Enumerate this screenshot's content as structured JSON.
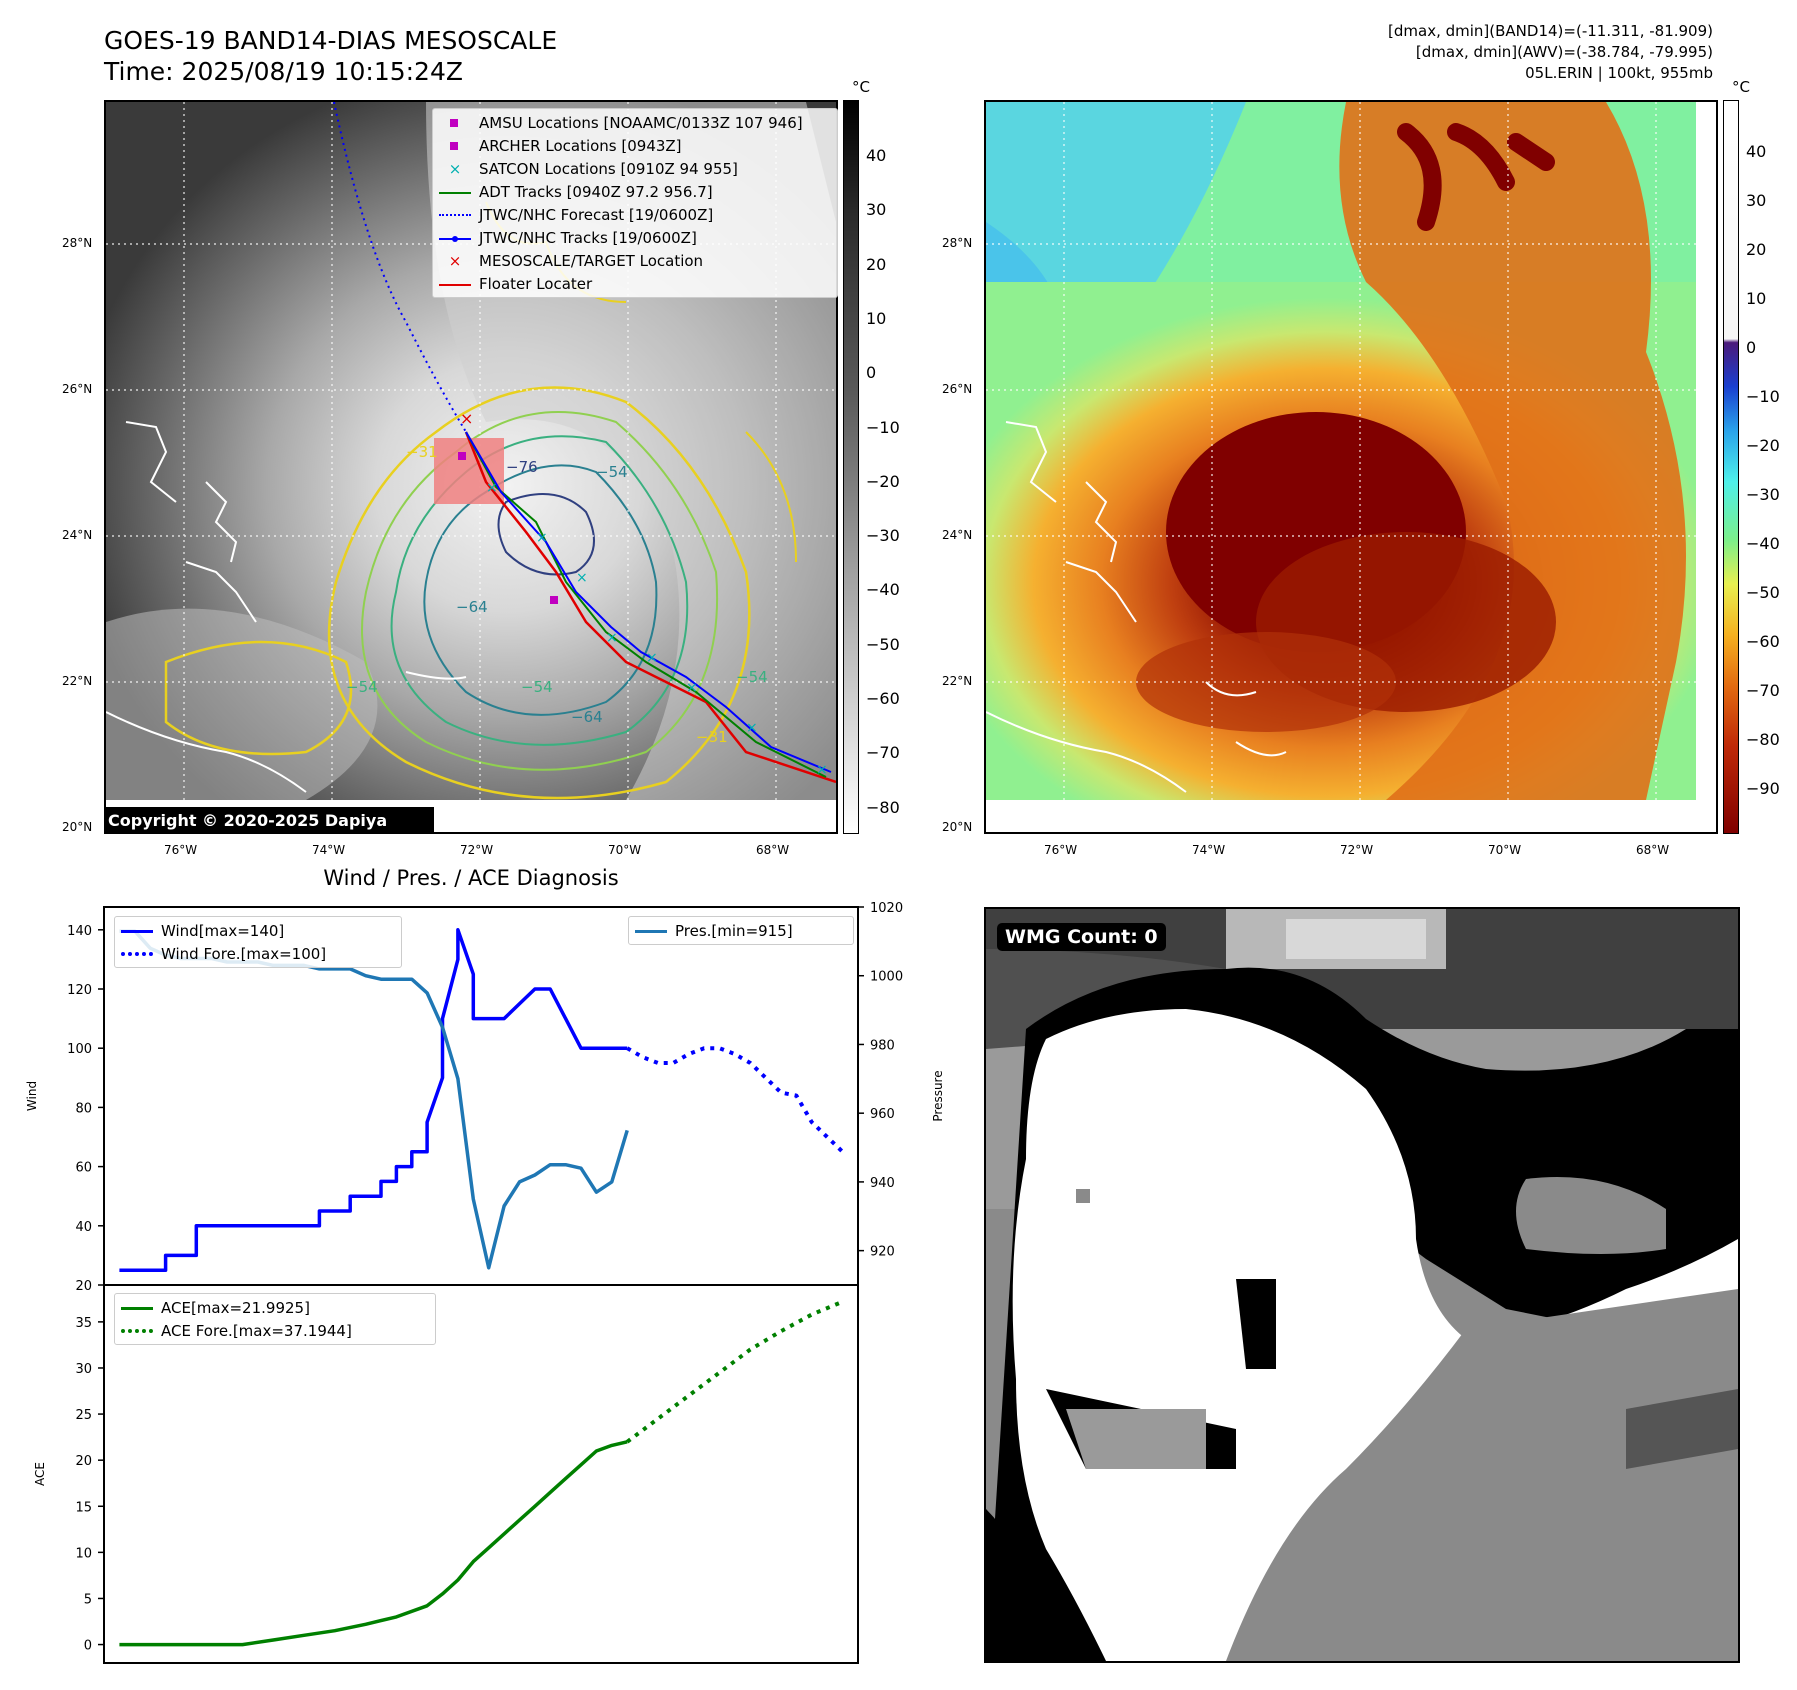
{
  "header": {
    "title_line1": "GOES-19 BAND14-DIAS MESOSCALE",
    "title_line2": "Time: 2025/08/19 10:15:24Z",
    "stat_line1": "[dmax, dmin](BAND14)=(-11.311, -81.909)",
    "stat_line2": "[dmax, dmin](AWV)=(-38.784, -79.995)",
    "stat_line3": "05L.ERIN | 100kt, 955mb"
  },
  "map": {
    "lat_labels": [
      "28°N",
      "26°N",
      "24°N",
      "22°N",
      "20°N"
    ],
    "lon_labels": [
      "76°W",
      "74°W",
      "72°W",
      "70°W",
      "68°W"
    ],
    "unit": "°C",
    "copyright": "Copyright © 2020-2025 Dapiya",
    "colorbar1_ticks": [
      "40",
      "30",
      "20",
      "10",
      "0",
      "−10",
      "−20",
      "−30",
      "−40",
      "−50",
      "−60",
      "−70",
      "−80"
    ],
    "colorbar2_ticks": [
      "40",
      "30",
      "20",
      "10",
      "0",
      "−10",
      "−20",
      "−30",
      "−40",
      "−50",
      "−60",
      "−70",
      "−80",
      "−90"
    ],
    "contour_labels": [
      "−76",
      "−54",
      "−64",
      "−54",
      "−64",
      "−54",
      "−54",
      "−31",
      "−31"
    ],
    "legend": [
      {
        "label": "AMSU Locations [NOAAMC/0133Z 107 946]",
        "color": "#c000c0",
        "marker": "square"
      },
      {
        "label": "ARCHER Locations [0943Z]",
        "color": "#c000c0",
        "marker": "square"
      },
      {
        "label": "SATCON Locations [0910Z 94 955]",
        "color": "#00b0b0",
        "marker": "x"
      },
      {
        "label": "ADT Tracks [0940Z 97.2 956.7]",
        "color": "#008000",
        "marker": "line"
      },
      {
        "label": "JTWC/NHC Forecast [19/0600Z]",
        "color": "#0000ff",
        "marker": "dotted"
      },
      {
        "label": "JTWC/NHC Tracks [19/0600Z]",
        "color": "#0000ff",
        "marker": "line-dot"
      },
      {
        "label": "MESOSCALE/TARGET Location",
        "color": "#e00000",
        "marker": "x"
      },
      {
        "label": "Floater Locater",
        "color": "#e00000",
        "marker": "line"
      }
    ]
  },
  "diagnosis": {
    "title": "Wind / Pres. / ACE Diagnosis",
    "wind_ylabel": "Wind",
    "pres_ylabel": "Pressure",
    "ace_ylabel": "ACE",
    "wind_ticks": [
      "140",
      "120",
      "100",
      "80",
      "60",
      "40",
      "20"
    ],
    "pres_ticks": [
      "1020",
      "1000",
      "980",
      "960",
      "940",
      "920"
    ],
    "ace_ticks": [
      "35",
      "30",
      "25",
      "20",
      "15",
      "10",
      "5",
      "0"
    ],
    "legend_wind": "Wind[max=140]",
    "legend_wind_fore": "Wind Fore.[max=100]",
    "legend_pres": "Pres.[min=915]",
    "legend_ace": "ACE[max=21.9925]",
    "legend_ace_fore": "ACE Fore.[max=37.1944]"
  },
  "chart_data": [
    {
      "type": "line",
      "title": "Wind / Pres. / ACE Diagnosis",
      "ylabel": "Wind",
      "ylim": [
        20,
        145
      ],
      "y2label": "Pressure",
      "y2lim": [
        910,
        1020
      ],
      "series": [
        {
          "name": "Wind[max=140]",
          "axis": "left",
          "style": "solid",
          "color": "#0000ff",
          "x": [
            0,
            3,
            3,
            5,
            5,
            8,
            8,
            13,
            13,
            15,
            15,
            17,
            17,
            18,
            18,
            19,
            19,
            20,
            20,
            21,
            21,
            22,
            22,
            23,
            23,
            24,
            24,
            25,
            26,
            27,
            28,
            29,
            30,
            31,
            32,
            33
          ],
          "y": [
            25,
            25,
            30,
            30,
            40,
            40,
            40,
            40,
            45,
            45,
            50,
            50,
            55,
            55,
            60,
            60,
            65,
            65,
            75,
            90,
            110,
            130,
            140,
            125,
            110,
            110,
            110,
            110,
            115,
            120,
            120,
            110,
            100,
            100,
            100,
            100
          ]
        },
        {
          "name": "Wind Fore.[max=100]",
          "axis": "left",
          "style": "dotted",
          "color": "#0000ff",
          "x": [
            33,
            34,
            35,
            36,
            37,
            38,
            39,
            40,
            41,
            42,
            43,
            44,
            45,
            46,
            47
          ],
          "y": [
            100,
            97,
            95,
            95,
            98,
            100,
            100,
            98,
            95,
            90,
            85,
            84,
            75,
            70,
            65
          ]
        },
        {
          "name": "Pres.[min=915]",
          "axis": "right",
          "style": "solid",
          "color": "#1f77b4",
          "x": [
            0,
            1,
            2,
            3,
            4,
            5,
            6,
            7,
            8,
            9,
            10,
            11,
            12,
            13,
            14,
            15,
            16,
            17,
            18,
            19,
            20,
            21,
            22,
            23,
            24,
            25,
            26,
            27,
            28,
            29,
            30,
            31,
            32,
            33
          ],
          "y": [
            1013,
            1013,
            1008,
            1006,
            1005,
            1005,
            1005,
            1004,
            1004,
            1004,
            1003,
            1003,
            1003,
            1002,
            1002,
            1002,
            1000,
            999,
            999,
            999,
            995,
            985,
            970,
            935,
            915,
            933,
            940,
            942,
            945,
            945,
            944,
            937,
            940,
            955
          ]
        },
        {
          "name": "ACE[max=21.9925]",
          "axis": "ace",
          "style": "solid",
          "color": "#008000",
          "x": [
            0,
            2,
            4,
            6,
            8,
            10,
            12,
            14,
            16,
            18,
            20,
            21,
            22,
            23,
            24,
            25,
            26,
            27,
            28,
            29,
            30,
            31,
            32,
            33
          ],
          "y": [
            0,
            0,
            0,
            0,
            0,
            0.5,
            1.0,
            1.5,
            2.2,
            3.0,
            4.2,
            5.5,
            7.0,
            9.0,
            10.5,
            12.0,
            13.5,
            15.0,
            16.5,
            18.0,
            19.5,
            21.0,
            21.6,
            21.99
          ]
        },
        {
          "name": "ACE Fore.[max=37.1944]",
          "axis": "ace",
          "style": "dotted",
          "color": "#008000",
          "x": [
            33,
            35,
            37,
            39,
            41,
            43,
            45,
            47
          ],
          "y": [
            21.99,
            24.5,
            27.0,
            29.5,
            32.0,
            34.0,
            35.8,
            37.19
          ]
        }
      ],
      "ace_ylim": [
        -2,
        39
      ]
    }
  ],
  "wmg": {
    "label": "WMG Count: 0"
  }
}
